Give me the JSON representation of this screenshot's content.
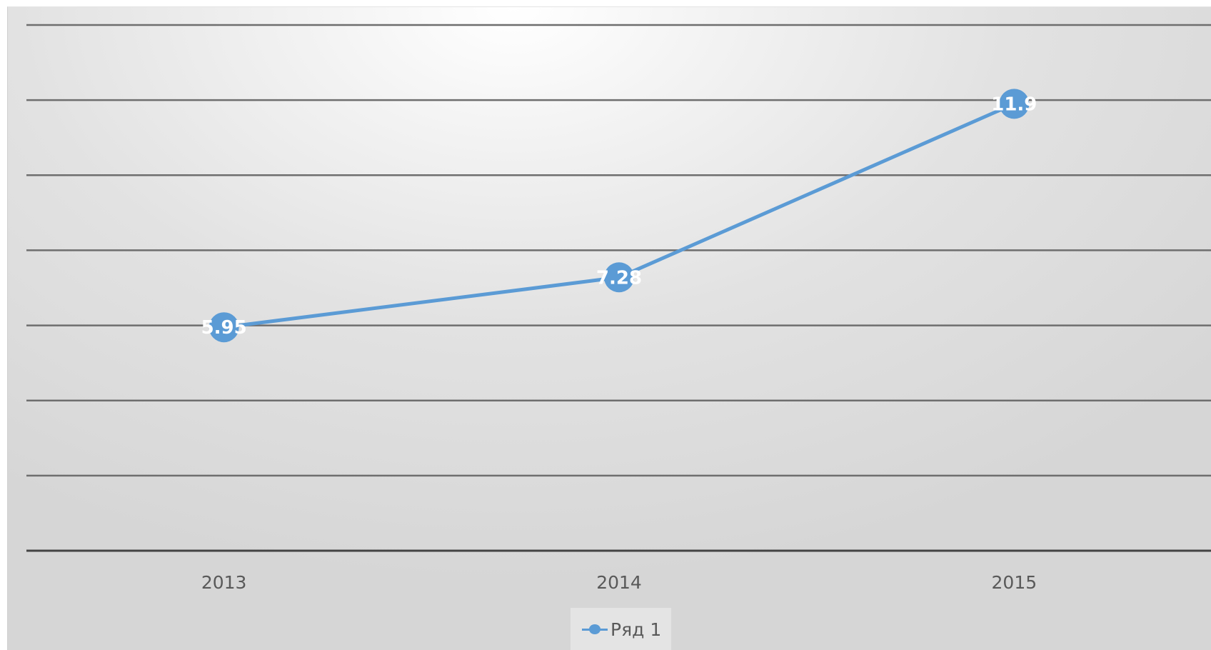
{
  "chart_data": {
    "type": "line",
    "categories": [
      "2013",
      "2014",
      "2015"
    ],
    "series": [
      {
        "name": "Ряд 1",
        "values": [
          5.95,
          7.28,
          11.9
        ],
        "labels": [
          "5.95",
          "7.28",
          "11.9"
        ],
        "color": "#5b9bd5"
      }
    ],
    "ylim": [
      0,
      14
    ],
    "gridline_step": 2,
    "grid": true,
    "y_tick_labels_visible": false,
    "legend_position": "bottom",
    "title": "",
    "xlabel": "",
    "ylabel": ""
  }
}
